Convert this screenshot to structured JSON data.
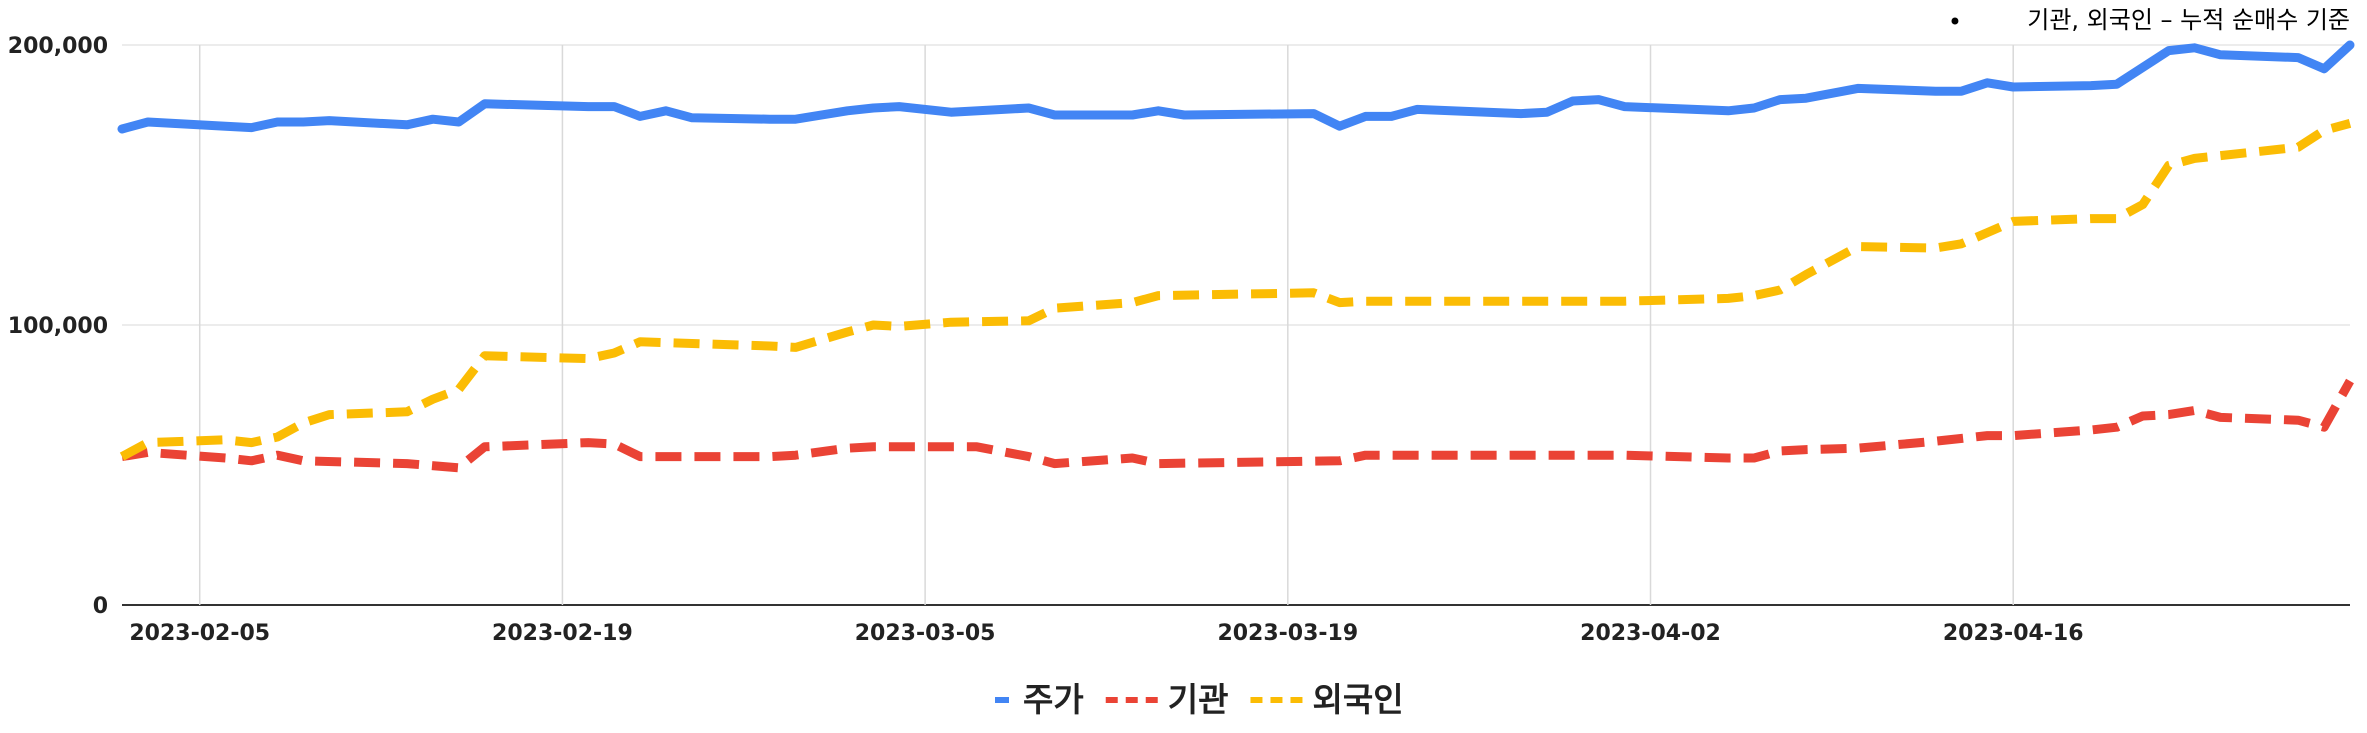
{
  "note": {
    "bullet": "•",
    "text": "기관, 외국인 – 누적 순매수 기준"
  },
  "chart_data": {
    "type": "line",
    "title": "",
    "xlabel": "",
    "ylabel": "",
    "ylim": [
      0,
      200000
    ],
    "yticks": [
      0,
      100000,
      200000
    ],
    "ytick_labels": [
      "0",
      "100,000",
      "200,000"
    ],
    "xlim": [
      "2023-02-02",
      "2023-04-29"
    ],
    "xticks": [
      "2023-02-05",
      "2023-02-19",
      "2023-03-05",
      "2023-03-19",
      "2023-04-02",
      "2023-04-16"
    ],
    "grid": {
      "vertical": true,
      "horizontal": true
    },
    "legend": "bottom-center",
    "series": [
      {
        "name": "주가",
        "color": "#4285f4",
        "dash": "solid",
        "points": [
          [
            "2023-02-02",
            170000
          ],
          [
            "2023-02-03",
            172500
          ],
          [
            "2023-02-06",
            171000
          ],
          [
            "2023-02-07",
            170500
          ],
          [
            "2023-02-08",
            172500
          ],
          [
            "2023-02-09",
            172500
          ],
          [
            "2023-02-10",
            173000
          ],
          [
            "2023-02-13",
            171500
          ],
          [
            "2023-02-14",
            173500
          ],
          [
            "2023-02-15",
            172500
          ],
          [
            "2023-02-16",
            179000
          ],
          [
            "2023-02-20",
            178000
          ],
          [
            "2023-02-21",
            178000
          ],
          [
            "2023-02-22",
            174500
          ],
          [
            "2023-02-23",
            176500
          ],
          [
            "2023-02-24",
            174000
          ],
          [
            "2023-02-27",
            173500
          ],
          [
            "2023-02-28",
            173500
          ],
          [
            "2023-03-02",
            176500
          ],
          [
            "2023-03-03",
            177500
          ],
          [
            "2023-03-04",
            178000
          ],
          [
            "2023-03-06",
            176000
          ],
          [
            "2023-03-09",
            177500
          ],
          [
            "2023-03-10",
            175000
          ],
          [
            "2023-03-13",
            175000
          ],
          [
            "2023-03-14",
            176500
          ],
          [
            "2023-03-15",
            175000
          ],
          [
            "2023-03-20",
            175500
          ],
          [
            "2023-03-21",
            171000
          ],
          [
            "2023-03-22",
            174500
          ],
          [
            "2023-03-23",
            174500
          ],
          [
            "2023-03-24",
            177000
          ],
          [
            "2023-03-28",
            175500
          ],
          [
            "2023-03-29",
            176000
          ],
          [
            "2023-03-30",
            180000
          ],
          [
            "2023-03-31",
            180500
          ],
          [
            "2023-04-01",
            178000
          ],
          [
            "2023-04-05",
            176500
          ],
          [
            "2023-04-06",
            177500
          ],
          [
            "2023-04-07",
            180500
          ],
          [
            "2023-04-08",
            181000
          ],
          [
            "2023-04-10",
            184500
          ],
          [
            "2023-04-13",
            183500
          ],
          [
            "2023-04-14",
            183500
          ],
          [
            "2023-04-15",
            186500
          ],
          [
            "2023-04-16",
            185000
          ],
          [
            "2023-04-19",
            185500
          ],
          [
            "2023-04-20",
            186000
          ],
          [
            "2023-04-22",
            198000
          ],
          [
            "2023-04-23",
            199000
          ],
          [
            "2023-04-24",
            196500
          ],
          [
            "2023-04-27",
            195500
          ],
          [
            "2023-04-28",
            191500
          ],
          [
            "2023-04-29",
            200000
          ]
        ]
      },
      {
        "name": "기관",
        "color": "#ea4335",
        "dash": "dashed",
        "points": [
          [
            "2023-02-02",
            53000
          ],
          [
            "2023-02-03",
            54500
          ],
          [
            "2023-02-06",
            52500
          ],
          [
            "2023-02-07",
            51500
          ],
          [
            "2023-02-08",
            53500
          ],
          [
            "2023-02-09",
            51500
          ],
          [
            "2023-02-13",
            50500
          ],
          [
            "2023-02-15",
            49000
          ],
          [
            "2023-02-16",
            56500
          ],
          [
            "2023-02-20",
            58000
          ],
          [
            "2023-02-21",
            57500
          ],
          [
            "2023-02-22",
            53000
          ],
          [
            "2023-02-27",
            53000
          ],
          [
            "2023-02-28",
            53500
          ],
          [
            "2023-03-02",
            56000
          ],
          [
            "2023-03-03",
            56500
          ],
          [
            "2023-03-07",
            56500
          ],
          [
            "2023-03-09",
            53000
          ],
          [
            "2023-03-10",
            50500
          ],
          [
            "2023-03-13",
            52500
          ],
          [
            "2023-03-14",
            50500
          ],
          [
            "2023-03-21",
            51500
          ],
          [
            "2023-03-22",
            53500
          ],
          [
            "2023-03-30",
            53500
          ],
          [
            "2023-04-01",
            53500
          ],
          [
            "2023-04-05",
            52500
          ],
          [
            "2023-04-06",
            52500
          ],
          [
            "2023-04-07",
            55000
          ],
          [
            "2023-04-08",
            55500
          ],
          [
            "2023-04-10",
            56000
          ],
          [
            "2023-04-13",
            58500
          ],
          [
            "2023-04-15",
            60500
          ],
          [
            "2023-04-16",
            60500
          ],
          [
            "2023-04-19",
            62500
          ],
          [
            "2023-04-20",
            63500
          ],
          [
            "2023-04-21",
            67500
          ],
          [
            "2023-04-22",
            68000
          ],
          [
            "2023-04-23",
            69500
          ],
          [
            "2023-04-24",
            67000
          ],
          [
            "2023-04-27",
            66000
          ],
          [
            "2023-04-28",
            63500
          ],
          [
            "2023-04-29",
            80000
          ]
        ]
      },
      {
        "name": "외국인",
        "color": "#fbbc04",
        "dash": "dashed",
        "points": [
          [
            "2023-02-02",
            53000
          ],
          [
            "2023-02-03",
            58000
          ],
          [
            "2023-02-06",
            59000
          ],
          [
            "2023-02-07",
            58000
          ],
          [
            "2023-02-08",
            60000
          ],
          [
            "2023-02-09",
            65000
          ],
          [
            "2023-02-10",
            68000
          ],
          [
            "2023-02-13",
            69000
          ],
          [
            "2023-02-14",
            73500
          ],
          [
            "2023-02-15",
            77000
          ],
          [
            "2023-02-16",
            89000
          ],
          [
            "2023-02-20",
            88000
          ],
          [
            "2023-02-21",
            90000
          ],
          [
            "2023-02-22",
            94000
          ],
          [
            "2023-02-27",
            92500
          ],
          [
            "2023-02-28",
            92000
          ],
          [
            "2023-03-02",
            97500
          ],
          [
            "2023-03-03",
            100000
          ],
          [
            "2023-03-04",
            99500
          ],
          [
            "2023-03-06",
            101000
          ],
          [
            "2023-03-09",
            101500
          ],
          [
            "2023-03-10",
            106000
          ],
          [
            "2023-03-13",
            108000
          ],
          [
            "2023-03-14",
            110500
          ],
          [
            "2023-03-20",
            111500
          ],
          [
            "2023-03-21",
            108000
          ],
          [
            "2023-03-22",
            108500
          ],
          [
            "2023-03-30",
            108500
          ],
          [
            "2023-04-01",
            108500
          ],
          [
            "2023-04-05",
            109500
          ],
          [
            "2023-04-06",
            110500
          ],
          [
            "2023-04-07",
            112500
          ],
          [
            "2023-04-08",
            118000
          ],
          [
            "2023-04-10",
            128000
          ],
          [
            "2023-04-13",
            127500
          ],
          [
            "2023-04-14",
            129000
          ],
          [
            "2023-04-15",
            133000
          ],
          [
            "2023-04-16",
            137000
          ],
          [
            "2023-04-19",
            138000
          ],
          [
            "2023-04-20",
            138000
          ],
          [
            "2023-04-21",
            143000
          ],
          [
            "2023-04-22",
            157000
          ],
          [
            "2023-04-23",
            159500
          ],
          [
            "2023-04-24",
            160500
          ],
          [
            "2023-04-27",
            163500
          ],
          [
            "2023-04-28",
            169500
          ],
          [
            "2023-04-29",
            172000
          ]
        ]
      }
    ]
  }
}
